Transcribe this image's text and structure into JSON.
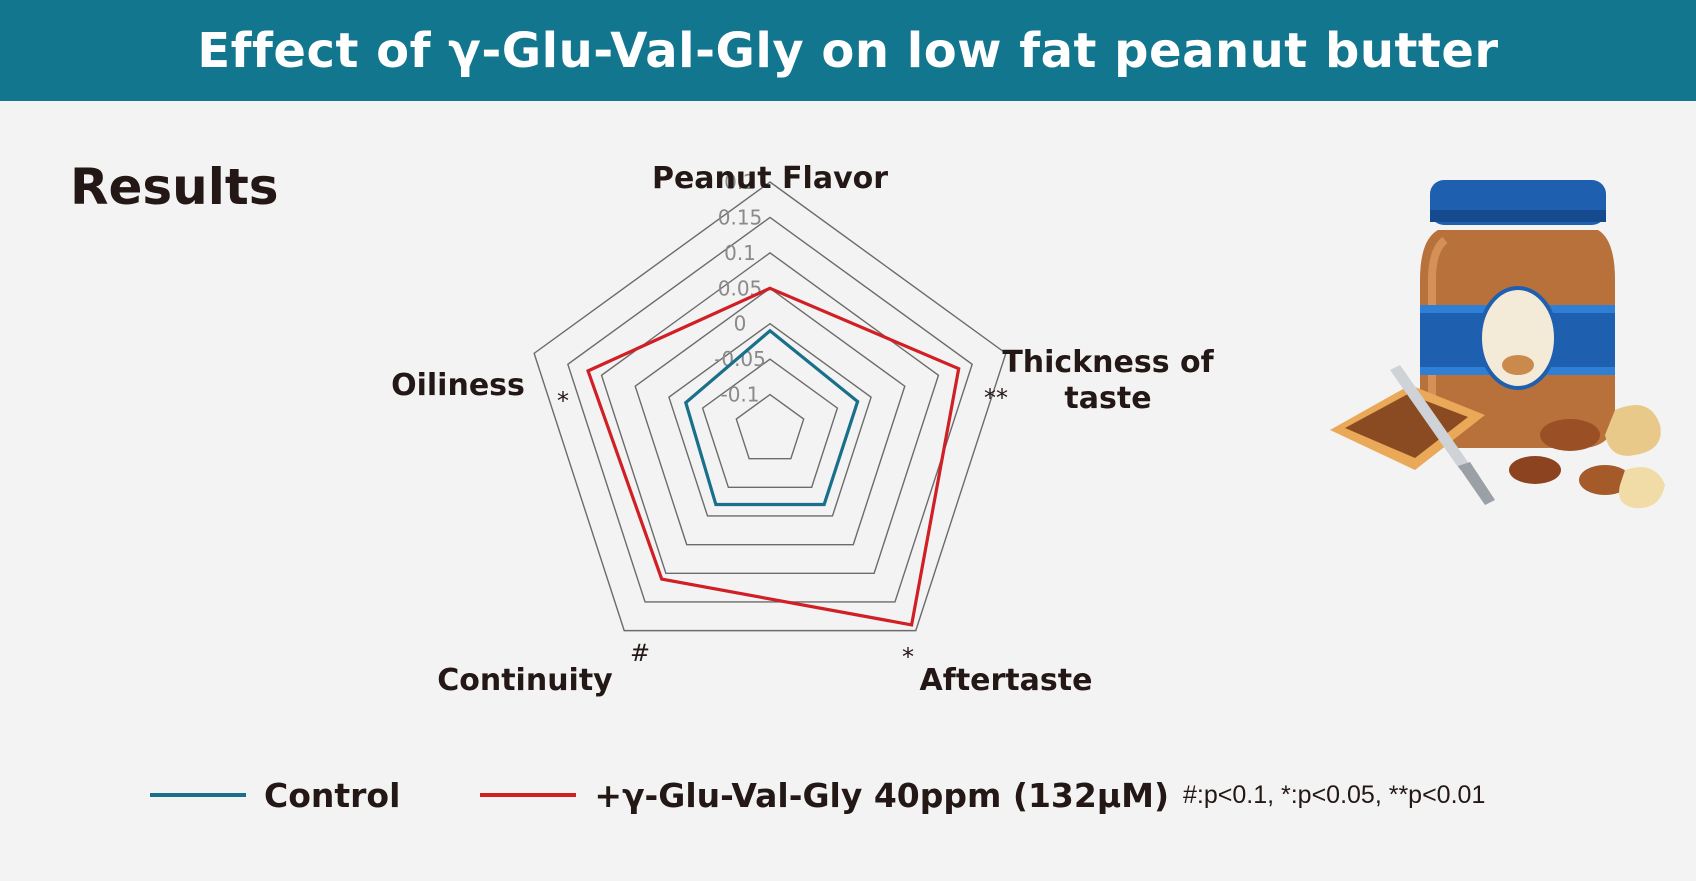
{
  "title": "Effect of γ-Glu-Val-Gly on low fat peanut butter",
  "section_heading": "Results",
  "footnote": "#:p<0.1, *:p<0.05, **p<0.01",
  "illustration": {
    "jar_label": "Peanut Butter",
    "icon": "peanut-butter-jar-icon"
  },
  "colors": {
    "banner": "#13768f",
    "control": "#1a6f8a",
    "treatment": "#d01f25",
    "grid": "#6b6b6b"
  },
  "chart_data": {
    "type": "radar",
    "axes": [
      "Peanut Flavor",
      "Thickness of taste",
      "Aftertaste",
      "Continuity",
      "Oiliness"
    ],
    "axis_label_lines": [
      [
        "Peanut Flavor"
      ],
      [
        "Thickness of",
        "taste"
      ],
      [
        "Aftertaste"
      ],
      [
        "Continuity"
      ],
      [
        "Oiliness"
      ]
    ],
    "significance": [
      "",
      "**",
      "*",
      "#",
      "*"
    ],
    "range": [
      -0.15,
      0.2
    ],
    "ticks": [
      -0.1,
      -0.05,
      0,
      0.05,
      0.1,
      0.15,
      0.2
    ],
    "tick_labels": [
      "-0.1",
      "-0.05",
      "0",
      "0.05",
      "0.1",
      "0.15",
      "0.2"
    ],
    "series": [
      {
        "name": "Control",
        "values": [
          -0.01,
          -0.02,
          -0.02,
          -0.02,
          -0.025
        ]
      },
      {
        "name": "+γ-Glu-Val-Gly 40ppm (132μM)",
        "values": [
          0.05,
          0.13,
          0.19,
          0.11,
          0.12
        ]
      }
    ]
  }
}
